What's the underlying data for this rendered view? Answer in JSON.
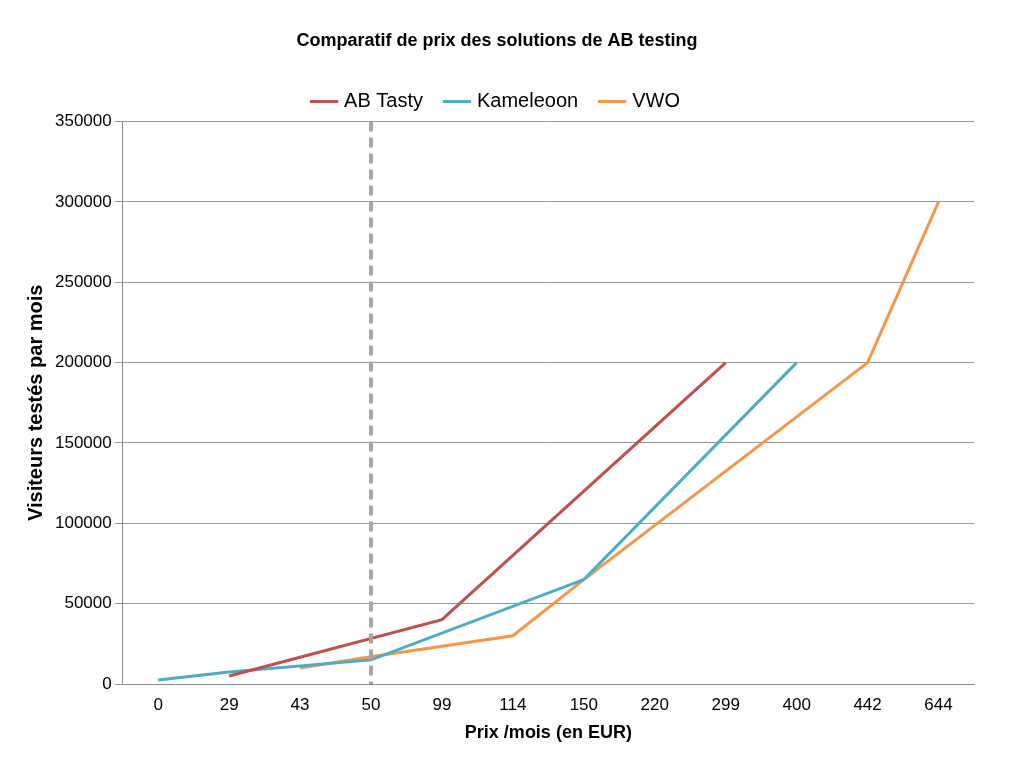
{
  "chart_data": {
    "type": "line",
    "title": "Comparatif de prix des solutions de AB testing",
    "x_label": "Prix /mois (en EUR)",
    "y_label": "Visiteurs testés par mois",
    "categories": [
      "0",
      "29",
      "43",
      "50",
      "99",
      "114",
      "150",
      "220",
      "299",
      "400",
      "442",
      "644"
    ],
    "series": [
      {
        "name": "AB Tasty",
        "color": "#c0504d",
        "values": [
          null,
          5000,
          null,
          null,
          40000,
          null,
          null,
          null,
          200000,
          null,
          null,
          null
        ]
      },
      {
        "name": "Kameleoon",
        "color": "#4bacc6",
        "values": [
          2500,
          7500,
          null,
          15000,
          null,
          null,
          65000,
          null,
          null,
          200000,
          null,
          null
        ]
      },
      {
        "name": "VWO",
        "color": "#f79646",
        "values": [
          null,
          null,
          10000,
          17000,
          null,
          30000,
          65000,
          null,
          null,
          null,
          200000,
          300000
        ]
      }
    ],
    "ylim": [
      0,
      350000
    ],
    "yticks": [
      0,
      50000,
      100000,
      150000,
      200000,
      250000,
      300000,
      350000
    ],
    "grid": true,
    "legend": "top",
    "marker": "none",
    "reference_line": {
      "x": "50",
      "color": "#a6a6a6",
      "line_style": "dashed"
    }
  }
}
